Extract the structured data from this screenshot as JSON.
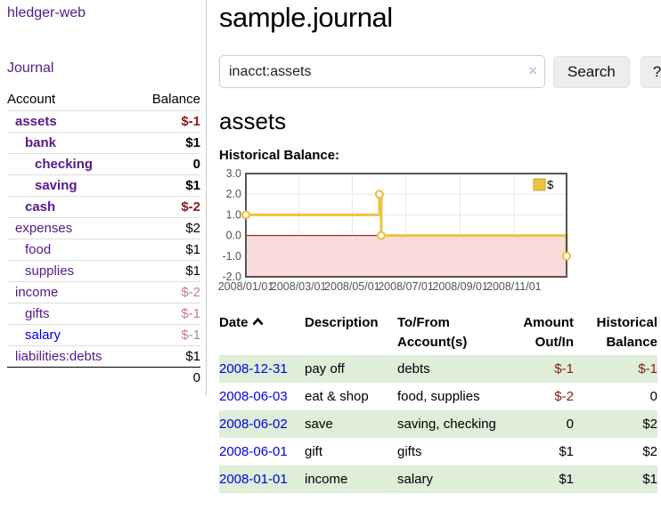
{
  "app": {
    "title": "hledger-web"
  },
  "sidebar": {
    "journal_link": "Journal",
    "accounts_table": {
      "headers": {
        "account": "Account",
        "balance": "Balance"
      },
      "rows": [
        {
          "name": "assets",
          "depth": 1,
          "bold": true,
          "balance": "$-1",
          "style": "neg-strong"
        },
        {
          "name": "bank",
          "depth": 2,
          "bold": true,
          "balance": "$1",
          "style": "pos"
        },
        {
          "name": "checking",
          "depth": 3,
          "bold": true,
          "balance": "0",
          "style": "pos"
        },
        {
          "name": "saving",
          "depth": 3,
          "bold": true,
          "balance": "$1",
          "style": "pos"
        },
        {
          "name": "cash",
          "depth": 2,
          "bold": true,
          "balance": "$-2",
          "style": "neg-strong"
        },
        {
          "name": "expenses",
          "depth": 1,
          "bold": false,
          "balance": "$2",
          "style": "pos"
        },
        {
          "name": "food",
          "depth": 2,
          "bold": false,
          "balance": "$1",
          "style": "pos"
        },
        {
          "name": "supplies",
          "depth": 2,
          "bold": false,
          "balance": "$1",
          "style": "pos"
        },
        {
          "name": "income",
          "depth": 1,
          "bold": false,
          "balance": "$-2",
          "style": "neg-muted"
        },
        {
          "name": "gifts",
          "depth": 2,
          "bold": false,
          "balance": "$-1",
          "style": "neg-muted"
        },
        {
          "name": "salary",
          "depth": 2,
          "bold": false,
          "balance": "$-1",
          "style": "neg-muted",
          "link_color": "blue"
        },
        {
          "name": "liabilities:debts",
          "depth": 1,
          "bold": false,
          "balance": "$1",
          "style": "pos"
        }
      ],
      "total": "0"
    }
  },
  "main": {
    "title": "sample.journal",
    "search": {
      "value": "inacct:assets",
      "clear_icon": "×",
      "button_label": "Search",
      "help_label": "?"
    },
    "account_heading": "assets",
    "chart_heading": "Historical Balance:"
  },
  "chart_data": {
    "type": "line",
    "style": "step",
    "title": "Historical Balance",
    "series": [
      {
        "name": "$",
        "color": "#edc240",
        "points": [
          [
            "2008-01-01",
            1
          ],
          [
            "2008-06-01",
            2
          ],
          [
            "2008-06-03",
            0
          ],
          [
            "2008-12-31",
            -1
          ]
        ]
      }
    ],
    "x_range": [
      "2008-01-01",
      "2008-12-31"
    ],
    "x_tick_dates": [
      "2008-01-01",
      "2008-03-01",
      "2008-05-01",
      "2008-07-01",
      "2008-09-01",
      "2008-11-01"
    ],
    "x_ticks": [
      "2008/01/01",
      "2008/03/01",
      "2008/05/01",
      "2008/07/01",
      "2008/09/01",
      "2008/11/01"
    ],
    "y_ticks": [
      3.0,
      2.0,
      1.0,
      0.0,
      -1.0,
      -2.0
    ],
    "ylim": [
      -2,
      3
    ],
    "legend": {
      "label": "$",
      "position": "top-right"
    },
    "grid": true,
    "negative_region_color": "#fbdada",
    "zero_line_color": "#8b0000",
    "axis_text_color": "#545454",
    "border_color": "#545454"
  },
  "register_table": {
    "headers": {
      "date": "Date",
      "description": "Description",
      "accounts": "To/From Account(s)",
      "amount": "Amount Out/In",
      "balance": "Historical Balance"
    },
    "rows": [
      {
        "date": "2008-12-31",
        "description": "pay off",
        "accounts": "debts",
        "amount": "$-1",
        "balance": "$-1"
      },
      {
        "date": "2008-06-03",
        "description": "eat & shop",
        "accounts": "food, supplies",
        "amount": "$-2",
        "balance": "0"
      },
      {
        "date": "2008-06-02",
        "description": "save",
        "accounts": "saving, checking",
        "amount": "0",
        "balance": "$2"
      },
      {
        "date": "2008-06-01",
        "description": "gift",
        "accounts": "gifts",
        "amount": "$1",
        "balance": "$2"
      },
      {
        "date": "2008-01-01",
        "description": "income",
        "accounts": "salary",
        "amount": "$1",
        "balance": "$1"
      }
    ]
  }
}
